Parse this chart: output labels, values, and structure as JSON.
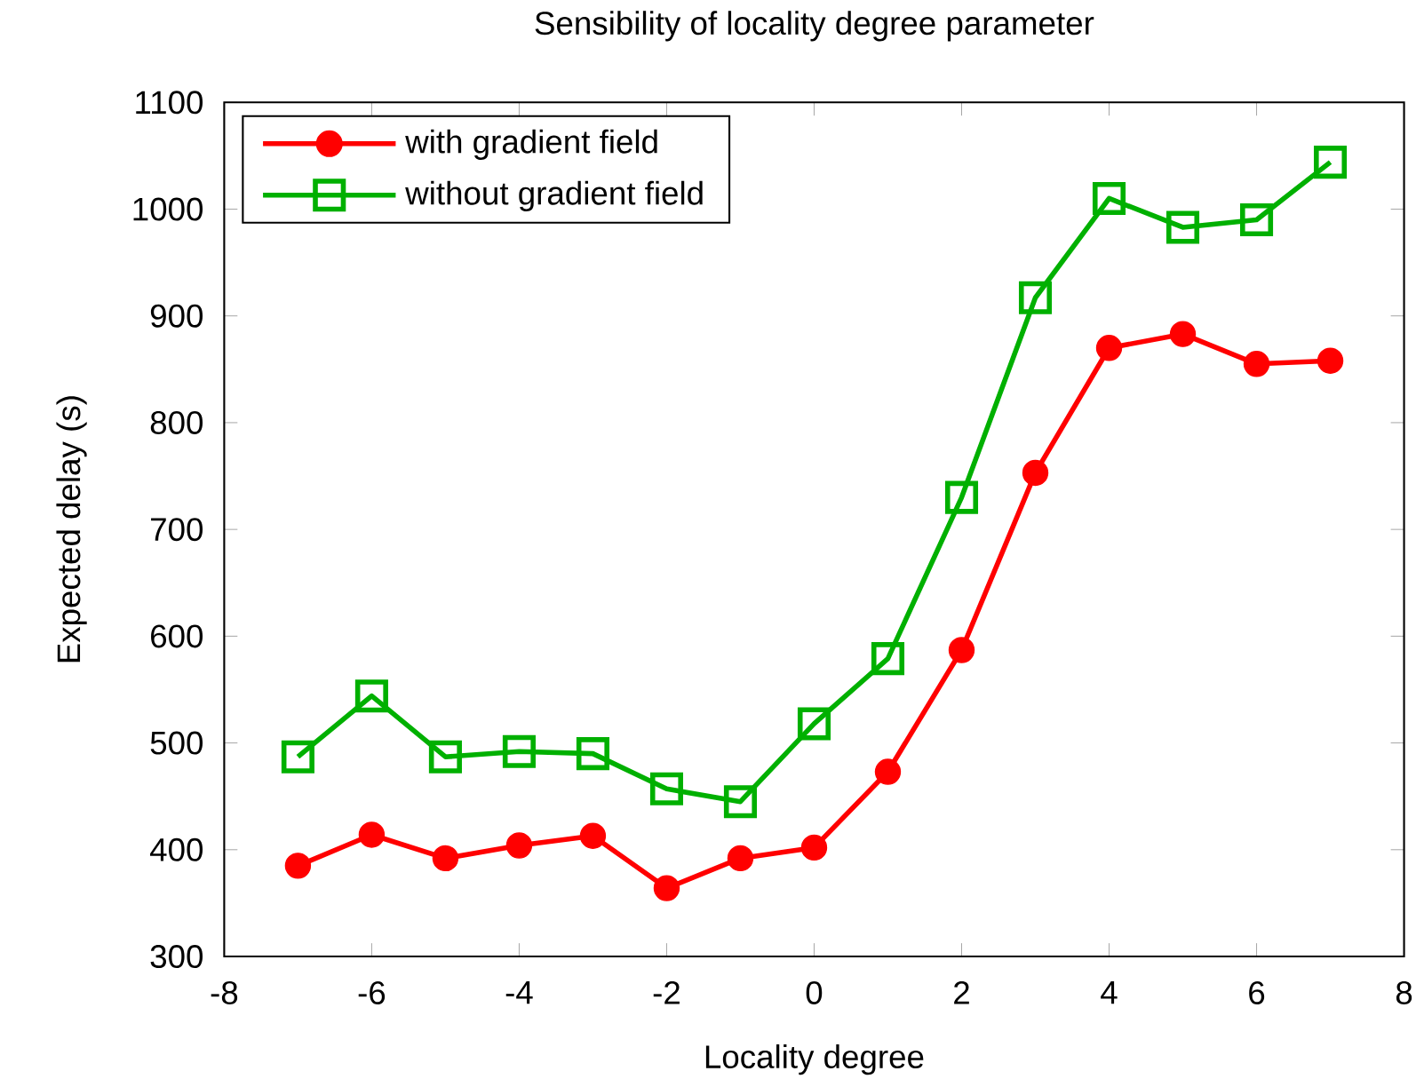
{
  "chart_data": {
    "type": "line",
    "title": "Sensibility of locality degree parameter",
    "xlabel": "Locality degree",
    "ylabel": "Expected delay (s)",
    "x": [
      -7,
      -6,
      -5,
      -4,
      -3,
      -2,
      -1,
      0,
      1,
      2,
      3,
      4,
      5,
      6,
      7
    ],
    "series": [
      {
        "name": "with gradient field",
        "color": "#ff0000",
        "marker": "circle",
        "values": [
          385,
          414,
          392,
          404,
          413,
          364,
          392,
          402,
          473,
          587,
          753,
          870,
          883,
          855,
          858
        ]
      },
      {
        "name": "without gradient field",
        "color": "#00b000",
        "marker": "square",
        "values": [
          487,
          544,
          487,
          492,
          490,
          457,
          445,
          518,
          579,
          730,
          917,
          1010,
          983,
          990,
          1044
        ]
      }
    ],
    "xlim": [
      -8,
      8
    ],
    "xticks": [
      -8,
      -6,
      -4,
      -2,
      0,
      2,
      4,
      6,
      8
    ],
    "ylim": [
      300,
      1100
    ],
    "yticks": [
      300,
      400,
      500,
      600,
      700,
      800,
      900,
      1000,
      1100
    ],
    "grid": false,
    "legend": "top left"
  }
}
